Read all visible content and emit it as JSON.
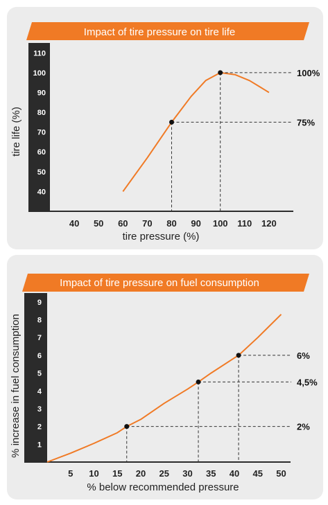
{
  "colors": {
    "accent": "#f07a25",
    "axis": "#2b2b2b",
    "panel": "#ececec",
    "curve": "#f07a25"
  },
  "chart_data": [
    {
      "type": "line",
      "title": "Impact of tire pressure on tire life",
      "xlabel": "tire pressure (%)",
      "ylabel": "tire life (%)",
      "xlim": [
        30,
        130
      ],
      "ylim": [
        30,
        115
      ],
      "x_ticks": [
        40,
        50,
        60,
        70,
        80,
        90,
        100,
        110,
        120
      ],
      "y_ticks": [
        40,
        50,
        60,
        70,
        80,
        90,
        100,
        110
      ],
      "series": [
        {
          "x": [
            60,
            70,
            80,
            88,
            94,
            100,
            106,
            112,
            116,
            120
          ],
          "y": [
            40,
            57,
            75,
            88,
            96,
            100,
            99,
            96,
            93,
            90
          ]
        }
      ],
      "highlights": [
        {
          "x": 80,
          "y": 75,
          "label": "75%"
        },
        {
          "x": 100,
          "y": 100,
          "label": "100%"
        }
      ],
      "grid": false
    },
    {
      "type": "line",
      "title": "Impact of tire pressure on fuel consumption",
      "xlabel": "% below recommended pressure",
      "ylabel": "% increase in fuel consumption",
      "xlim": [
        0,
        52
      ],
      "ylim": [
        0,
        9.5
      ],
      "x_ticks": [
        5,
        10,
        15,
        20,
        25,
        30,
        35,
        40,
        45,
        50
      ],
      "y_ticks": [
        1,
        2,
        3,
        4,
        5,
        6,
        7,
        8,
        9
      ],
      "series": [
        {
          "x": [
            0,
            5,
            10,
            15,
            17,
            20,
            25,
            30,
            32.3,
            35,
            40,
            40.9,
            45,
            50
          ],
          "y": [
            0,
            0.5,
            1.05,
            1.65,
            2,
            2.4,
            3.3,
            4.1,
            4.5,
            5.0,
            5.85,
            6,
            7.0,
            8.3
          ]
        }
      ],
      "highlights": [
        {
          "x": 17,
          "y": 2,
          "label": "2%"
        },
        {
          "x": 32.3,
          "y": 4.5,
          "label": "4,5%"
        },
        {
          "x": 40.9,
          "y": 6,
          "label": "6%"
        }
      ],
      "grid": false
    }
  ]
}
